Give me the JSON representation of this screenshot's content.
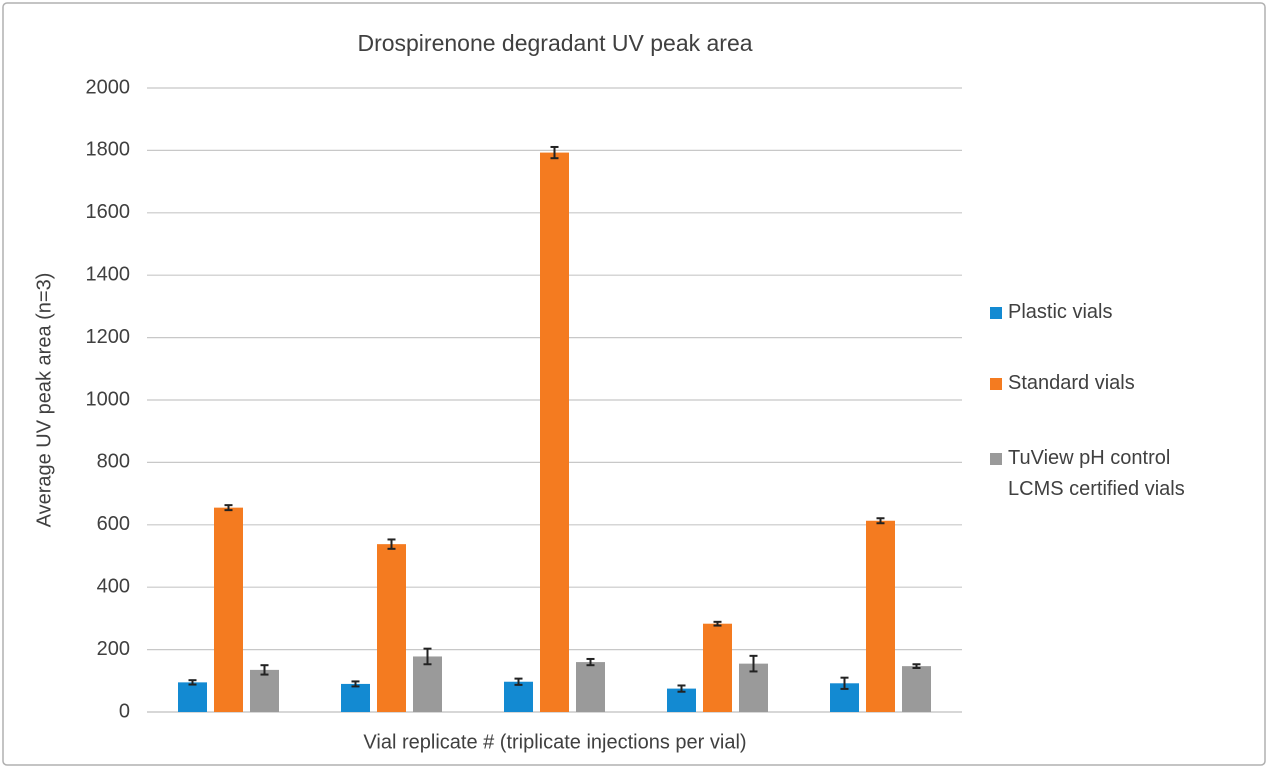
{
  "chart_data": {
    "type": "bar",
    "title": "Drospirenone degradant UV peak area",
    "x_label": "Vial replicate # (triplicate injections per vial)",
    "y_label": "Average UV peak area (n=3)",
    "categories": [
      null,
      null,
      null,
      null,
      null
    ],
    "series": [
      {
        "name": "Plastic vials",
        "color": "#138ad2",
        "values": [
          95,
          90,
          97,
          75,
          92
        ],
        "errors": [
          7,
          8,
          10,
          10,
          18
        ]
      },
      {
        "name": "Standard vials",
        "color": "#f47b20",
        "values": [
          655,
          538,
          1793,
          283,
          613
        ],
        "errors": [
          8,
          15,
          18,
          6,
          8
        ]
      },
      {
        "name": "TuView pH control LCMS certified vials",
        "color": "#9a9a9a",
        "values": [
          135,
          178,
          160,
          155,
          147
        ],
        "errors": [
          15,
          25,
          10,
          25,
          6
        ]
      }
    ],
    "ylim": [
      0,
      2000
    ],
    "yticks": [
      0,
      200,
      400,
      600,
      800,
      1000,
      1200,
      1400,
      1600,
      1800,
      2000
    ],
    "grid": true,
    "legend": "right"
  }
}
